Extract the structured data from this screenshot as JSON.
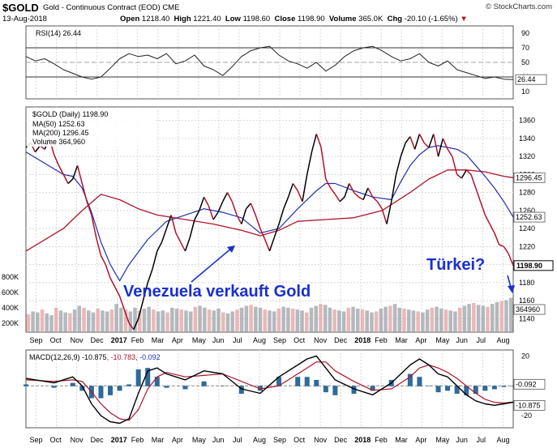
{
  "header": {
    "symbol": "$GOLD",
    "description": "Gold - Continuous Contract (EOD)",
    "exchange": "CME",
    "date": "13-Aug-2018",
    "open_label": "Open",
    "open": "1218.40",
    "high_label": "High",
    "high": "1221.40",
    "low_label": "Low",
    "low": "1198.60",
    "close_label": "Close",
    "close": "1198.90",
    "volume_label": "Volume",
    "volume": "365.0K",
    "chg_label": "Chg",
    "chg": "-20.10 (-1.65%)",
    "chg_marker": "▼",
    "credit": "© StockCharts.com"
  },
  "colors": {
    "price_rise": "#000000",
    "price_fall": "#b0132a",
    "ma50": "#1f2fb0",
    "ma200": "#b0132a",
    "annotation": "#1a2fd0",
    "volume_up": "#9aa1a7",
    "volume_down": "#e3a0a0",
    "macd_hist": "#2e6a9a",
    "grid": "#d8d8d8"
  },
  "chart_data": [
    {
      "type": "line",
      "panel": "rsi",
      "legend": "RSI(14) 26.44",
      "ylim": [
        0,
        100
      ],
      "y_ticks": [
        "90",
        "70",
        "50",
        "30",
        "10"
      ],
      "reference_lines": [
        70,
        50,
        30
      ],
      "last_value": "26.44",
      "x": [
        0,
        2,
        4,
        6,
        8,
        10,
        12,
        14,
        16,
        18,
        20,
        22,
        24,
        26,
        28,
        30,
        32,
        34,
        36,
        38,
        40,
        42,
        44,
        46,
        48,
        50,
        52,
        54,
        56,
        58,
        60,
        62,
        64,
        66,
        68,
        70,
        72,
        74,
        76,
        78,
        80,
        82,
        84,
        86,
        88,
        90,
        92,
        94,
        96,
        98,
        100,
        102,
        104
      ],
      "values": [
        58,
        52,
        55,
        48,
        40,
        35,
        30,
        27,
        30,
        42,
        55,
        62,
        58,
        60,
        55,
        62,
        48,
        52,
        60,
        45,
        40,
        32,
        44,
        58,
        66,
        70,
        72,
        60,
        52,
        48,
        42,
        50,
        38,
        46,
        58,
        66,
        70,
        72,
        66,
        58,
        52,
        55,
        62,
        50,
        45,
        52,
        40,
        36,
        32,
        28,
        30,
        27,
        26.44
      ]
    },
    {
      "type": "line",
      "panel": "price",
      "legend": "$GOLD (Daily) 1198.90",
      "series": [
        {
          "name": "$GOLD (Daily)",
          "last_value": "1198.90",
          "x": [
            0,
            1,
            2,
            3,
            4,
            5,
            6,
            7,
            8,
            9,
            10,
            11,
            12,
            13,
            14,
            15,
            16,
            17,
            18,
            19,
            20,
            21,
            22,
            23,
            24,
            25,
            26,
            27,
            28,
            29,
            30,
            31,
            32,
            33,
            34,
            35,
            36,
            37,
            38,
            39,
            40,
            41,
            42,
            43,
            44,
            45,
            46,
            47,
            48,
            49,
            50,
            51,
            52,
            53,
            54,
            55,
            56,
            57,
            58,
            59,
            60,
            61,
            62,
            63,
            64,
            65,
            66,
            67,
            68,
            69,
            70,
            71,
            72,
            73,
            74,
            75,
            76,
            77,
            78,
            79,
            80,
            81,
            82,
            83,
            84,
            85,
            86,
            87,
            88,
            89,
            90,
            91,
            92,
            93,
            94,
            95,
            96,
            97,
            98,
            99,
            100,
            101,
            102,
            103,
            104
          ],
          "values": [
            1330,
            1335,
            1325,
            1332,
            1328,
            1340,
            1322,
            1310,
            1300,
            1290,
            1295,
            1310,
            1290,
            1270,
            1255,
            1230,
            1210,
            1200,
            1185,
            1175,
            1165,
            1150,
            1135,
            1128,
            1140,
            1160,
            1180,
            1195,
            1215,
            1225,
            1240,
            1255,
            1235,
            1225,
            1215,
            1230,
            1250,
            1260,
            1275,
            1265,
            1250,
            1258,
            1270,
            1280,
            1270,
            1255,
            1245,
            1262,
            1268,
            1255,
            1240,
            1228,
            1215,
            1230,
            1245,
            1262,
            1275,
            1290,
            1282,
            1270,
            1300,
            1325,
            1345,
            1330,
            1295,
            1285,
            1278,
            1270,
            1275,
            1290,
            1280,
            1275,
            1272,
            1285,
            1275,
            1270,
            1262,
            1245,
            1270,
            1300,
            1320,
            1335,
            1342,
            1328,
            1345,
            1335,
            1330,
            1345,
            1320,
            1340,
            1328,
            1320,
            1300,
            1296,
            1305,
            1300,
            1285,
            1270,
            1255,
            1245,
            1235,
            1222,
            1220,
            1212,
            1198.9
          ]
        },
        {
          "name": "MA(50)",
          "last_value": "1252.63",
          "x": [
            0,
            8,
            10,
            12,
            14,
            16,
            18,
            20,
            22,
            26,
            30,
            34,
            38,
            42,
            46,
            50,
            54,
            58,
            62,
            64,
            66,
            70,
            74,
            78,
            80,
            82,
            84,
            86,
            88,
            90,
            92,
            94,
            96,
            98,
            100,
            102,
            104
          ],
          "values": [
            1325,
            1300,
            1298,
            1285,
            1258,
            1225,
            1200,
            1182,
            1200,
            1228,
            1248,
            1255,
            1262,
            1258,
            1252,
            1235,
            1240,
            1262,
            1282,
            1290,
            1290,
            1282,
            1275,
            1272,
            1292,
            1310,
            1322,
            1330,
            1332,
            1330,
            1328,
            1322,
            1310,
            1298,
            1285,
            1270,
            1252.63
          ]
        },
        {
          "name": "MA(200)",
          "last_value": "1296.45",
          "x": [
            0,
            8,
            12,
            16,
            20,
            24,
            28,
            34,
            40,
            46,
            50,
            54,
            58,
            64,
            70,
            76,
            82,
            86,
            90,
            94,
            98,
            102,
            104
          ],
          "values": [
            1215,
            1240,
            1260,
            1278,
            1272,
            1262,
            1255,
            1250,
            1245,
            1238,
            1232,
            1238,
            1248,
            1250,
            1252,
            1260,
            1280,
            1295,
            1305,
            1305,
            1303,
            1298,
            1296.45
          ]
        }
      ],
      "ylim": [
        1125,
        1375
      ],
      "y_ticks": [
        "1360",
        "1340",
        "1320",
        "1300",
        "1280",
        "1260",
        "1240",
        "1220",
        "1200",
        "1180",
        "1160",
        "1140"
      ],
      "x_tick_labels": [
        "Sep",
        "Oct",
        "Nov",
        "Dec",
        "2017",
        "Feb",
        "Mar",
        "Apr",
        "May",
        "Jun",
        "Jul",
        "Aug",
        "Sep",
        "Oct",
        "Nov",
        "Dec",
        "2018",
        "Feb",
        "Mar",
        "Apr",
        "May",
        "Jun",
        "Jul",
        "Aug"
      ],
      "annotations": [
        "Venezuela verkauft Gold",
        "Türkei?"
      ],
      "value_tags": [
        "1296.45",
        "1252.63",
        "1198.90",
        "364960"
      ]
    },
    {
      "type": "bar",
      "panel": "volume",
      "legend": "Volume 364,960",
      "y_ticks": [
        "800K",
        "600K",
        "400K",
        "200K"
      ],
      "last_value": "364960",
      "values": [
        190,
        220,
        210,
        240,
        200,
        180,
        260,
        230,
        210,
        200,
        240,
        280,
        260,
        230,
        210,
        250,
        230,
        220,
        240,
        300,
        260,
        240,
        220,
        260,
        230,
        250,
        270,
        240,
        220,
        230,
        210,
        260,
        250,
        240,
        230,
        220,
        270,
        280,
        260,
        240,
        230,
        250,
        210,
        200,
        220,
        240,
        260,
        280,
        290,
        270,
        260,
        240,
        230,
        220,
        250,
        270,
        260,
        250,
        240,
        230,
        210,
        260,
        280,
        300,
        290,
        260,
        240,
        230,
        220,
        260,
        270,
        250,
        240,
        230,
        210,
        220,
        250,
        270,
        280,
        300,
        260,
        250,
        240,
        230,
        220,
        210,
        240,
        260,
        270,
        250,
        240,
        230,
        220,
        260,
        280,
        300,
        310,
        290,
        280,
        270,
        300,
        320,
        330,
        340,
        365
      ]
    },
    {
      "type": "line",
      "panel": "macd",
      "legend": "MACD(12,26,9) -10.875, -10.783, -0.092",
      "legend_parts": [
        "MACD(12,26,9)",
        "-10.875",
        "-10.783",
        "-0.092"
      ],
      "y_ticks": [
        "20",
        "0",
        "-20"
      ],
      "ylim": [
        -28,
        24
      ],
      "series": [
        {
          "name": "MACD",
          "last_value": "-10.875",
          "x": [
            0,
            6,
            10,
            12,
            14,
            16,
            18,
            20,
            22,
            24,
            26,
            28,
            30,
            34,
            38,
            42,
            46,
            50,
            54,
            58,
            60,
            62,
            64,
            66,
            70,
            74,
            78,
            82,
            84,
            86,
            88,
            90,
            92,
            94,
            96,
            98,
            100,
            102,
            104
          ],
          "values": [
            5,
            2,
            6,
            0,
            -12,
            -20,
            -24,
            -25,
            -22,
            -5,
            10,
            12,
            8,
            4,
            10,
            8,
            -2,
            -5,
            6,
            14,
            18,
            20,
            12,
            4,
            -2,
            -6,
            2,
            14,
            18,
            14,
            8,
            6,
            0,
            -6,
            -10,
            -12,
            -13,
            -12,
            -10.875
          ]
        },
        {
          "name": "Signal",
          "last_value": "-10.783",
          "x": [
            0,
            6,
            10,
            12,
            14,
            16,
            18,
            20,
            22,
            24,
            26,
            28,
            30,
            34,
            38,
            42,
            46,
            50,
            54,
            58,
            60,
            62,
            64,
            66,
            70,
            74,
            78,
            82,
            84,
            86,
            88,
            90,
            92,
            94,
            96,
            98,
            100,
            102,
            104
          ],
          "values": [
            4,
            3,
            4,
            3,
            -4,
            -12,
            -18,
            -22,
            -23,
            -16,
            -2,
            6,
            9,
            6,
            7,
            8,
            3,
            -2,
            0,
            8,
            12,
            16,
            16,
            10,
            3,
            -3,
            -2,
            6,
            12,
            14,
            12,
            9,
            5,
            0,
            -5,
            -9,
            -11,
            -11.5,
            -10.783
          ]
        },
        {
          "name": "Histogram",
          "last_value": "-0.092"
        }
      ],
      "x_tick_labels": [
        "Sep",
        "Oct",
        "Nov",
        "Dec",
        "2017",
        "Feb",
        "Mar",
        "Apr",
        "May",
        "Jun",
        "Jul",
        "Aug",
        "Sep",
        "Oct",
        "Nov",
        "Dec",
        "2018",
        "Feb",
        "Mar",
        "Apr",
        "May",
        "Jun",
        "Jul",
        "Aug"
      ]
    }
  ]
}
